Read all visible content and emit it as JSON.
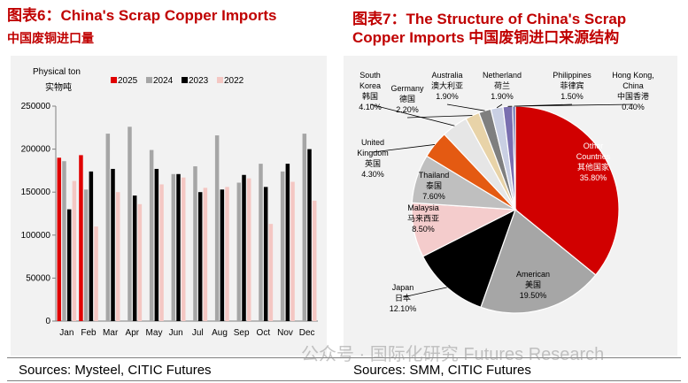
{
  "left": {
    "title": "图表6：China's Scrap Copper Imports",
    "subtitle": "中国废铜进口量",
    "source": "Sources: Mysteel, CITIC Futures"
  },
  "right": {
    "title": "图表7：The Structure of China's Scrap Copper Imports 中国废铜进口来源结构",
    "source": "Sources: SMM, CITIC Futures"
  },
  "watermark": "公众号 · 国际化研究 Futures Research",
  "chart_data": [
    {
      "type": "bar",
      "ylabel": "Physical ton",
      "ylabel2": "实物吨",
      "ylim": [
        0,
        250000
      ],
      "yticks": [
        0,
        50000,
        100000,
        150000,
        200000,
        250000
      ],
      "categories": [
        "Jan",
        "Feb",
        "Mar",
        "Apr",
        "May",
        "Jun",
        "Jul",
        "Aug",
        "Sep",
        "Oct",
        "Nov",
        "Dec"
      ],
      "legend_position": "top",
      "grid": false,
      "series": [
        {
          "name": "2025",
          "color": "#e00000",
          "values": [
            190000,
            193000,
            null,
            null,
            null,
            null,
            null,
            null,
            null,
            null,
            null,
            null
          ]
        },
        {
          "name": "2024",
          "color": "#a6a6a6",
          "values": [
            186000,
            153000,
            218000,
            226000,
            199000,
            171000,
            180000,
            216000,
            161000,
            183000,
            174000,
            218000
          ]
        },
        {
          "name": "2023",
          "color": "#000000",
          "values": [
            130000,
            174000,
            177000,
            146000,
            177000,
            171000,
            150000,
            153000,
            170000,
            156000,
            183000,
            200000
          ]
        },
        {
          "name": "2022",
          "color": "#f4c7c3",
          "values": [
            163000,
            110000,
            150000,
            136000,
            159000,
            167000,
            155000,
            156000,
            166000,
            113000,
            162000,
            140000
          ]
        }
      ]
    },
    {
      "type": "pie",
      "slices": [
        {
          "en": "Other Countries",
          "zh": "其他国家",
          "pct": "35.80%",
          "value": 35.8,
          "color": "#d10000"
        },
        {
          "en": "American",
          "zh": "美国",
          "pct": "19.50%",
          "value": 19.5,
          "color": "#a6a6a6"
        },
        {
          "en": "Japan",
          "zh": "日本",
          "pct": "12.10%",
          "value": 12.1,
          "color": "#000000"
        },
        {
          "en": "Malaysia",
          "zh": "马来西亚",
          "pct": "8.50%",
          "value": 8.5,
          "color": "#f4cccc"
        },
        {
          "en": "Thailand",
          "zh": "泰国",
          "pct": "7.60%",
          "value": 7.6,
          "color": "#bfbfbf"
        },
        {
          "en": "United Kingdom",
          "zh": "英国",
          "pct": "4.30%",
          "value": 4.3,
          "color": "#e45a12"
        },
        {
          "en": "South Korea",
          "zh": "韩国",
          "pct": "4.10%",
          "value": 4.1,
          "color": "#e6e6e6"
        },
        {
          "en": "Germany",
          "zh": "德国",
          "pct": "2.20%",
          "value": 2.2,
          "color": "#e8d3a8"
        },
        {
          "en": "Australia",
          "zh": "澳大利亚",
          "pct": "1.90%",
          "value": 1.9,
          "color": "#7f7f7f"
        },
        {
          "en": "Netherland",
          "zh": "荷兰",
          "pct": "1.90%",
          "value": 1.9,
          "color": "#c9cfe3"
        },
        {
          "en": "Philippines",
          "zh": "菲律宾",
          "pct": "1.50%",
          "value": 1.5,
          "color": "#7a6fb0"
        },
        {
          "en": "Hong Kong, China",
          "zh": "中国香港",
          "pct": "0.40%",
          "value": 0.4,
          "color": "#4a56a0"
        }
      ]
    }
  ]
}
